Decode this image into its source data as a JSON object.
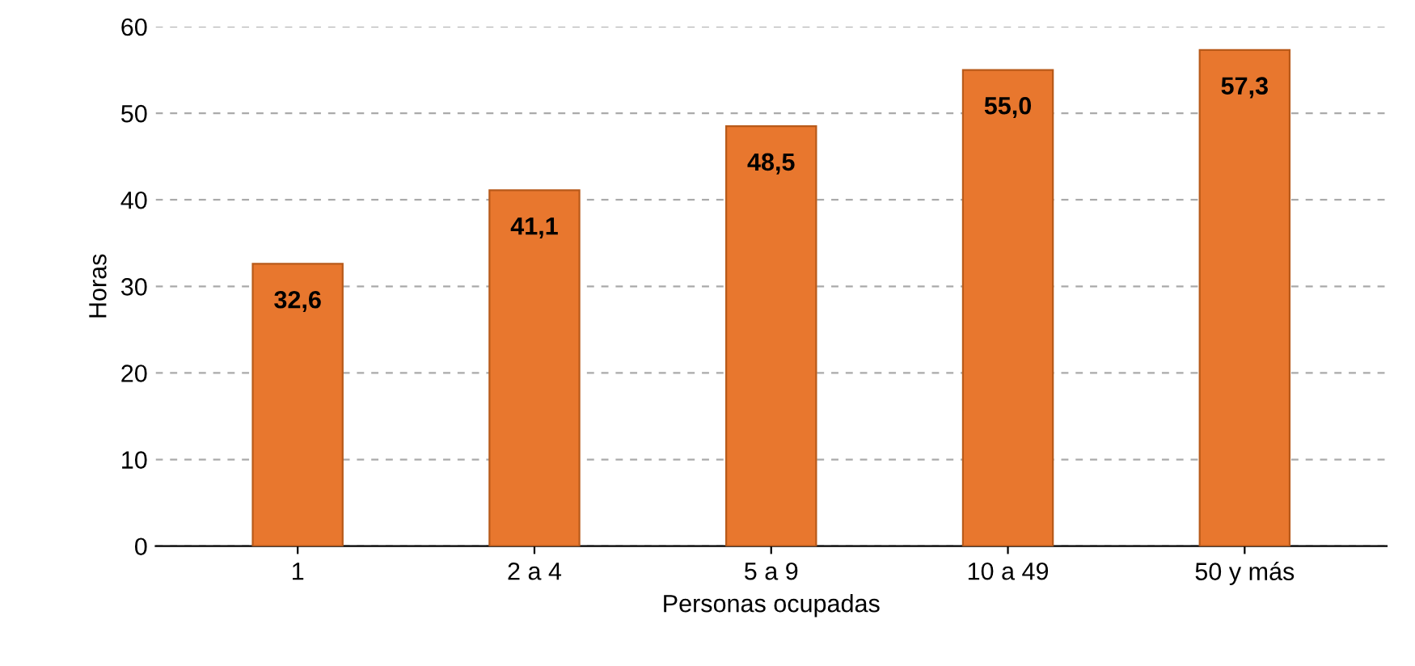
{
  "chart_data": {
    "type": "bar",
    "xlabel": "Personas ocupadas",
    "ylabel": "Horas",
    "categories": [
      "1",
      "2 a 4",
      "5 a 9",
      "10 a 49",
      "50 y más"
    ],
    "values": [
      32.6,
      41.1,
      48.5,
      55.0,
      57.3
    ],
    "value_labels": [
      "32,6",
      "41,1",
      "48,5",
      "55,0",
      "57,3"
    ],
    "color": "#e8772e",
    "ylim": [
      0,
      60
    ],
    "yticks": [
      0,
      10,
      20,
      30,
      40,
      50,
      60
    ],
    "grid": "y"
  }
}
